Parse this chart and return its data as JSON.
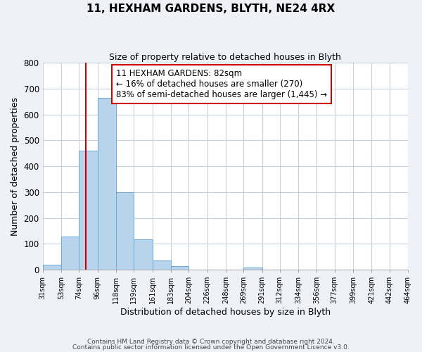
{
  "title_line1": "11, HEXHAM GARDENS, BLYTH, NE24 4RX",
  "title_line2": "Size of property relative to detached houses in Blyth",
  "xlabel": "Distribution of detached houses by size in Blyth",
  "ylabel": "Number of detached properties",
  "bar_edges": [
    31,
    53,
    74,
    96,
    118,
    139,
    161,
    183,
    204,
    226,
    248,
    269,
    291,
    312,
    334,
    356,
    377,
    399,
    421,
    442,
    464
  ],
  "bar_heights": [
    18,
    128,
    460,
    665,
    300,
    117,
    35,
    13,
    0,
    0,
    0,
    8,
    0,
    0,
    0,
    0,
    0,
    0,
    0,
    0
  ],
  "bar_color": "#b8d4ed",
  "bar_edge_color": "#6aaad4",
  "vline_x": 82,
  "vline_color": "#cc0000",
  "ylim": [
    0,
    800
  ],
  "yticks": [
    0,
    100,
    200,
    300,
    400,
    500,
    600,
    700,
    800
  ],
  "annotation_line1": "11 HEXHAM GARDENS: 82sqm",
  "annotation_line2": "← 16% of detached houses are smaller (270)",
  "annotation_line3": "83% of semi-detached houses are larger (1,445) →",
  "annotation_fontsize": 8.5,
  "tick_labels": [
    "31sqm",
    "53sqm",
    "74sqm",
    "96sqm",
    "118sqm",
    "139sqm",
    "161sqm",
    "183sqm",
    "204sqm",
    "226sqm",
    "248sqm",
    "269sqm",
    "291sqm",
    "312sqm",
    "334sqm",
    "356sqm",
    "377sqm",
    "399sqm",
    "421sqm",
    "442sqm",
    "464sqm"
  ],
  "footnote1": "Contains HM Land Registry data © Crown copyright and database right 2024.",
  "footnote2": "Contains public sector information licensed under the Open Government Licence v3.0.",
  "background_color": "#eef2f8",
  "plot_bg_color": "#ffffff",
  "grid_color": "#c8d0dc",
  "title1_fontsize": 11,
  "title2_fontsize": 9
}
